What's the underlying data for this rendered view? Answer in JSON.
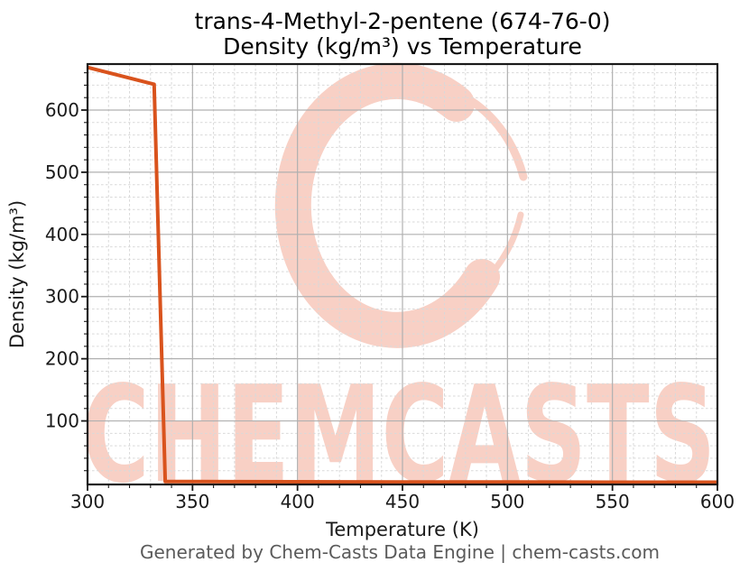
{
  "title": {
    "line1": "trans-4-Methyl-2-pentene (674-76-0)",
    "line2": "Density (kg/m³) vs Temperature"
  },
  "footer": "Generated by Chem-Casts Data Engine | chem-casts.com",
  "watermark": {
    "text": "CHEMCASTS",
    "color": "#f8d0c5"
  },
  "chart_data": {
    "type": "line",
    "title": "trans-4-Methyl-2-pentene (674-76-0) Density (kg/m³) vs Temperature",
    "xlabel": "Temperature (K)",
    "ylabel": "Density (kg/m³)",
    "xlim": [
      300,
      600
    ],
    "ylim": [
      -2.2,
      674
    ],
    "x_major_ticks": [
      300,
      350,
      400,
      450,
      500,
      550,
      600
    ],
    "x_minor_step": 10,
    "y_major_ticks": [
      100,
      200,
      300,
      400,
      500,
      600
    ],
    "y_minor_step": 20,
    "grid": true,
    "legend": "none",
    "line_color": "#d9531d",
    "series": [
      {
        "name": "Density",
        "x": [
          300,
          331.7,
          337,
          350,
          400,
          450,
          500,
          550,
          600
        ],
        "y": [
          668.6,
          641.5,
          2.6,
          2.4,
          2.1,
          1.9,
          1.7,
          1.5,
          1.4
        ]
      }
    ]
  }
}
